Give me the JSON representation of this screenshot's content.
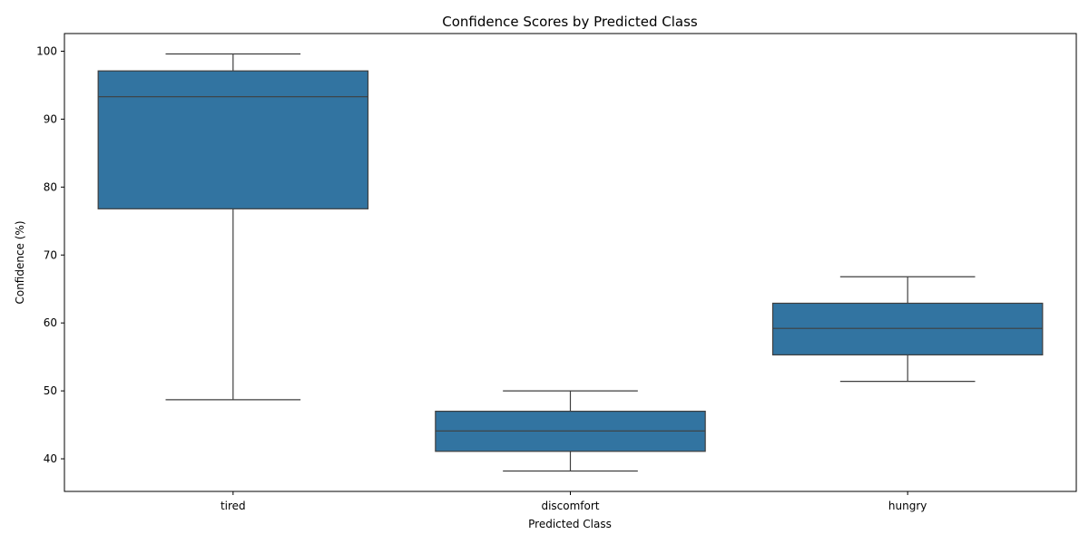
{
  "chart_data": {
    "type": "box",
    "title": "Confidence Scores by Predicted Class",
    "xlabel": "Predicted Class",
    "ylabel": "Confidence (%)",
    "ylim": [
      35.2,
      102.6
    ],
    "yticks": [
      40,
      50,
      60,
      70,
      80,
      90,
      100
    ],
    "grid": false,
    "colors": {
      "box_fill": "#3274a1",
      "line": "#3f3f3f"
    },
    "categories": [
      "tired",
      "discomfort",
      "hungry"
    ],
    "boxes": [
      {
        "category": "tired",
        "whisker_low": 48.7,
        "q1": 76.8,
        "median": 93.3,
        "q3": 97.1,
        "whisker_high": 99.6
      },
      {
        "category": "discomfort",
        "whisker_low": 38.2,
        "q1": 41.1,
        "median": 44.1,
        "q3": 47.0,
        "whisker_high": 50.0
      },
      {
        "category": "hungry",
        "whisker_low": 51.4,
        "q1": 55.3,
        "median": 59.2,
        "q3": 62.9,
        "whisker_high": 66.8
      }
    ]
  }
}
